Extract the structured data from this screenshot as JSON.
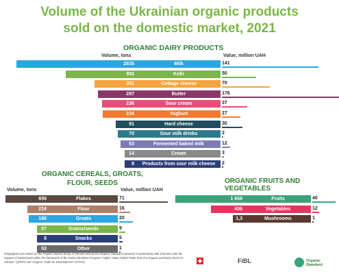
{
  "title_line1": "Volume of the Ukrainian organic products",
  "title_line2": "sold on the domestic market, 2021",
  "dairy": {
    "heading": "ORGANIC DAIRY PRODUCTS",
    "vol_header": "Volume, tons",
    "val_header": "Value, million UAH",
    "items": [
      {
        "name": "Milk",
        "volume": "2835",
        "value": "141",
        "color": "#29a7df"
      },
      {
        "name": "Kefir",
        "volume": "992",
        "value": "50",
        "color": "#7ab648"
      },
      {
        "name": "Cottage cheese",
        "volume": "351",
        "value": "70",
        "color": "#f5a33c"
      },
      {
        "name": "Butter",
        "volume": "297",
        "value": "176",
        "color": "#8a3868"
      },
      {
        "name": "Sour cream",
        "volume": "236",
        "value": "37",
        "color": "#ea4c7a"
      },
      {
        "name": "Yoghurt",
        "volume": "234",
        "value": "27",
        "color": "#f27a2e"
      },
      {
        "name": "Hard cheese",
        "volume": "91",
        "value": "30",
        "color": "#1f4e5e"
      },
      {
        "name": "Sour milk drinks",
        "volume": "70",
        "value": "2",
        "color": "#2f7a8a"
      },
      {
        "name": "Fermented baked milk",
        "volume": "53",
        "value": "12",
        "color": "#7c7bb8"
      },
      {
        "name": "Cream",
        "volume": "14",
        "value": "3",
        "color": "#8a8a8a"
      },
      {
        "name": "Products from sour milk cheese",
        "volume": "8",
        "value": "2",
        "color": "#2d3d78"
      }
    ]
  },
  "cereals": {
    "heading_line1": "ORGANIC CEREALS, GROATS,",
    "heading_line2": "FLOUR, SEEDS",
    "vol_header": "Volume, tons",
    "val_header": "Value, million UAH",
    "items": [
      {
        "name": "Flakes",
        "volume": "856",
        "value": "71",
        "color": "#5a4a42"
      },
      {
        "name": "Flour",
        "volume": "218",
        "value": "16",
        "color": "#b07d69"
      },
      {
        "name": "Groats",
        "volume": "188",
        "value": "20",
        "color": "#29a7df"
      },
      {
        "name": "Grains/seeds",
        "volume": "57",
        "value": "9",
        "color": "#7ab648"
      },
      {
        "name": "Snacks",
        "volume": "8",
        "value": "5",
        "color": "#2d3d78"
      },
      {
        "name": "Other",
        "volume": "53",
        "value": "1",
        "color": "#6b6b6b"
      }
    ]
  },
  "fruits": {
    "heading": "ORGANIC FRUITS AND VEGETABLES",
    "items": [
      {
        "name": "Fruits",
        "volume": "1 666",
        "value": "40",
        "color": "#3aa37a"
      },
      {
        "name": "Vegetables",
        "volume": "406",
        "value": "12",
        "color": "#e0395f"
      },
      {
        "name": "Mushrooms",
        "volume": "1,3",
        "value": "1",
        "color": "#5a3a2e"
      }
    ]
  },
  "footnote": "Infographics are based on the Organic Market Study of Ukraine held by the Organic Standard (Ukraine) in partnership with (Ukraine) with the support of Switzerland within the framework of the Swiss-Ukrainian Program \"Higher Value Added Trade from the Organic and Dairy Sector in Ukraine\" (QTEP) and \"Organic Trade for Development\" (OTHG)",
  "logos": [
    "FiBL",
    "Organic Standard"
  ],
  "chart_data": [
    {
      "type": "bar",
      "title": "ORGANIC DAIRY PRODUCTS",
      "categories": [
        "Milk",
        "Kefir",
        "Cottage cheese",
        "Butter",
        "Sour cream",
        "Yoghurt",
        "Hard cheese",
        "Sour milk drinks",
        "Fermented baked milk",
        "Cream",
        "Products from sour milk cheese"
      ],
      "series": [
        {
          "name": "Volume, tons",
          "values": [
            2835,
            992,
            351,
            297,
            236,
            234,
            91,
            70,
            53,
            14,
            8
          ]
        },
        {
          "name": "Value, million UAH",
          "values": [
            141,
            50,
            70,
            176,
            37,
            27,
            30,
            2,
            12,
            3,
            2
          ]
        }
      ]
    },
    {
      "type": "bar",
      "title": "ORGANIC CEREALS, GROATS, FLOUR, SEEDS",
      "categories": [
        "Flakes",
        "Flour",
        "Groats",
        "Grains/seeds",
        "Snacks",
        "Other"
      ],
      "series": [
        {
          "name": "Volume, tons",
          "values": [
            856,
            218,
            188,
            57,
            8,
            53
          ]
        },
        {
          "name": "Value, million UAH",
          "values": [
            71,
            16,
            20,
            9,
            5,
            1
          ]
        }
      ]
    },
    {
      "type": "bar",
      "title": "ORGANIC FRUITS AND VEGETABLES",
      "categories": [
        "Fruits",
        "Vegetables",
        "Mushrooms"
      ],
      "series": [
        {
          "name": "Volume, tons",
          "values": [
            1666,
            406,
            1.3
          ]
        },
        {
          "name": "Value, million UAH",
          "values": [
            40,
            12,
            1
          ]
        }
      ]
    }
  ]
}
